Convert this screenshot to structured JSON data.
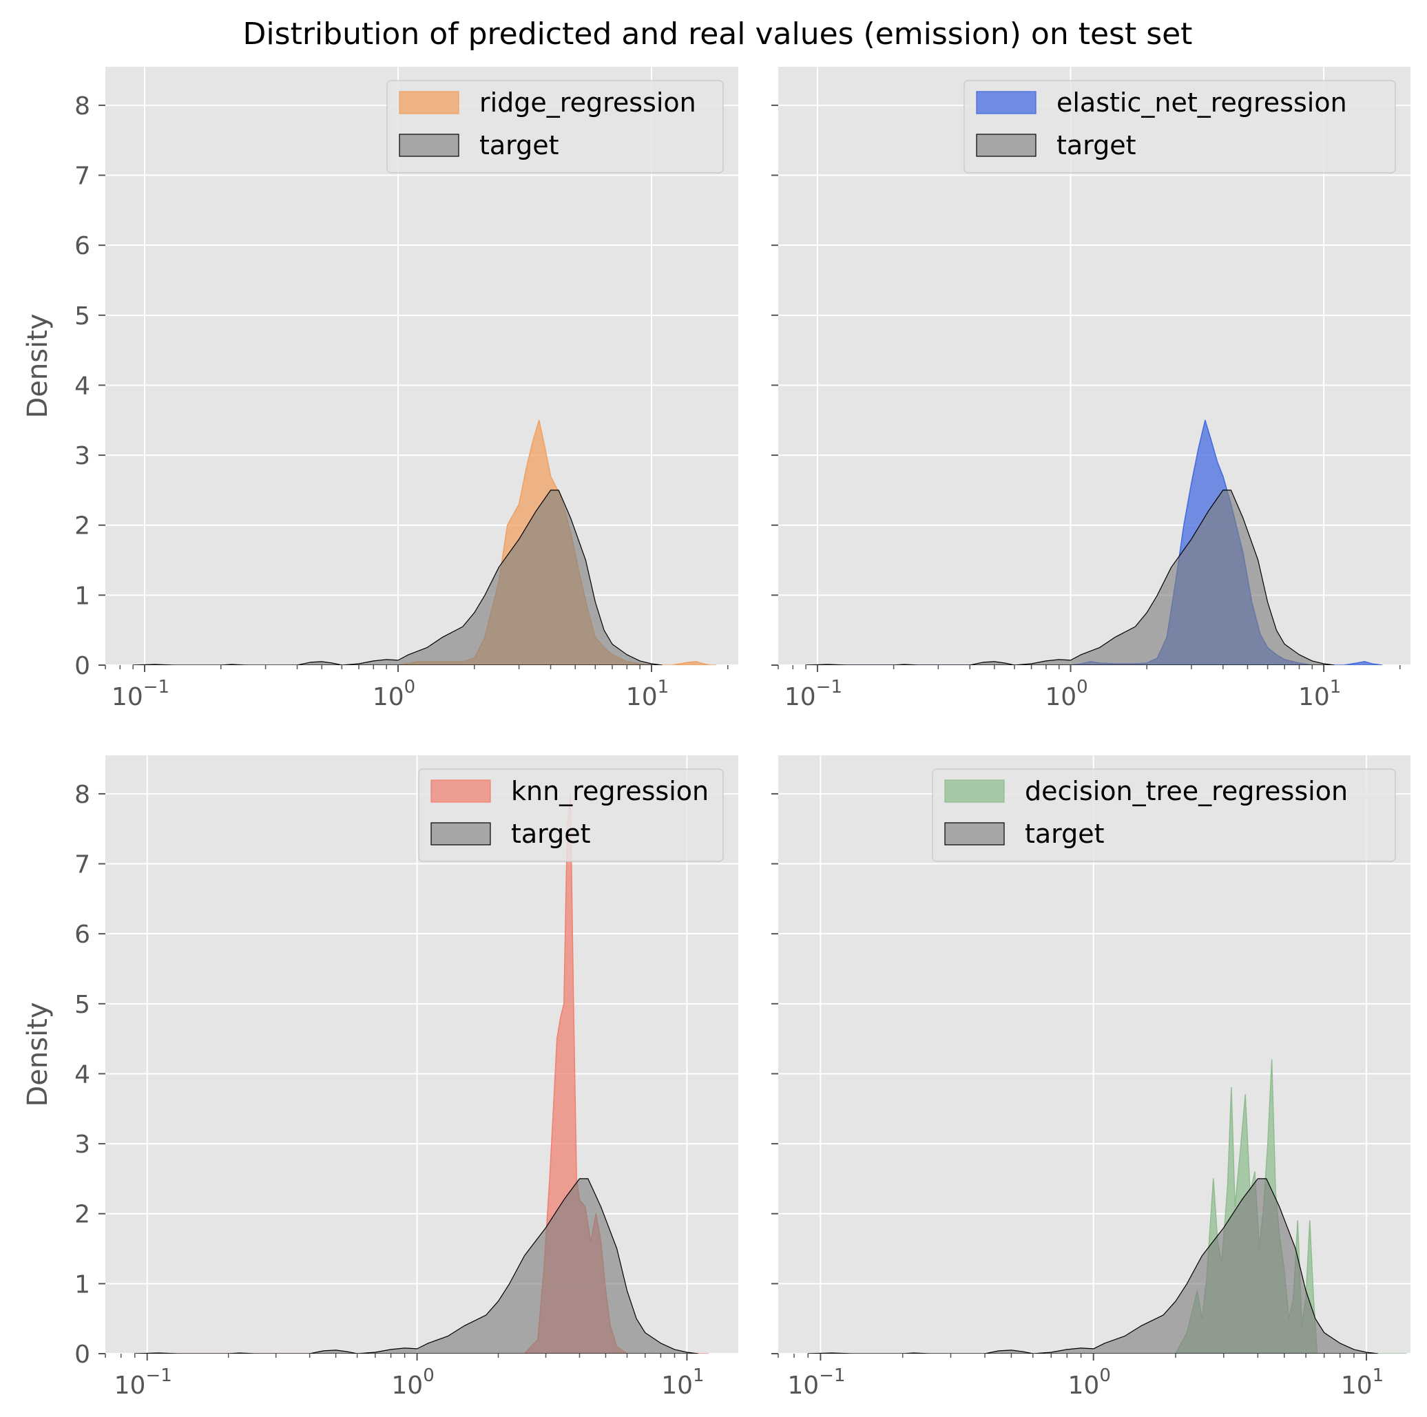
{
  "suptitle": "Distribution of predicted and real values (emission) on test set",
  "colors": {
    "panel_bg": "#E5E5E5",
    "grid": "#FFFFFF",
    "tick_text": "#555555",
    "target_fill": "#808080",
    "target_line": "#000000"
  },
  "chart_data": [
    {
      "type": "area",
      "xscale": "log",
      "xlim": [
        0.07,
        22
      ],
      "ylim": [
        0,
        8.55
      ],
      "ylabel": "Density",
      "xtick_labels": [
        "10",
        "10",
        "10"
      ],
      "xtick_exponents": [
        "−1",
        "0",
        "1"
      ],
      "xtick_values": [
        0.1,
        1,
        10
      ],
      "ytick_labels": [
        "0",
        "1",
        "2",
        "3",
        "4",
        "5",
        "6",
        "7",
        "8"
      ],
      "legend": {
        "position": "top-right",
        "entries": [
          "ridge_regression",
          "target"
        ]
      },
      "series": [
        {
          "name": "ridge_regression",
          "color": "#F0A060",
          "x": [
            0.09,
            0.5,
            1.0,
            1.2,
            1.5,
            1.8,
            2.0,
            2.2,
            2.5,
            2.7,
            3.0,
            3.2,
            3.4,
            3.6,
            3.8,
            4.0,
            4.4,
            4.8,
            5.2,
            5.6,
            6.0,
            6.5,
            7.0,
            8.0,
            9.0,
            10.0,
            11.0,
            12.0,
            13.0,
            14.0,
            15.0,
            16.0,
            17.0,
            18.0
          ],
          "y": [
            0,
            0,
            0,
            0.05,
            0.05,
            0.05,
            0.1,
            0.4,
            1.2,
            2.0,
            2.3,
            2.8,
            3.2,
            3.5,
            3.1,
            2.7,
            2.4,
            1.9,
            1.3,
            0.8,
            0.4,
            0.25,
            0.15,
            0.05,
            0.02,
            0,
            0,
            0,
            0.02,
            0.04,
            0.05,
            0.02,
            0,
            0
          ]
        },
        {
          "name": "target",
          "color": "#808080",
          "x": [
            0.09,
            0.11,
            0.13,
            0.2,
            0.22,
            0.25,
            0.4,
            0.45,
            0.5,
            0.55,
            0.6,
            0.7,
            0.8,
            0.9,
            1.0,
            1.1,
            1.3,
            1.5,
            1.8,
            2.0,
            2.2,
            2.5,
            3.0,
            3.5,
            4.0,
            4.3,
            4.8,
            5.5,
            6.0,
            6.5,
            7.0,
            8.0,
            9.0,
            10.0,
            11.0
          ],
          "y": [
            0,
            0.01,
            0,
            0,
            0.01,
            0,
            0,
            0.04,
            0.05,
            0.03,
            0,
            0.02,
            0.06,
            0.08,
            0.07,
            0.15,
            0.25,
            0.4,
            0.55,
            0.75,
            1.0,
            1.4,
            1.8,
            2.2,
            2.5,
            2.5,
            2.1,
            1.5,
            0.9,
            0.5,
            0.3,
            0.15,
            0.06,
            0.02,
            0
          ]
        }
      ]
    },
    {
      "type": "area",
      "xscale": "log",
      "xlim": [
        0.07,
        22
      ],
      "ylim": [
        0,
        8.55
      ],
      "ylabel": "",
      "xtick_labels": [
        "10",
        "10",
        "10"
      ],
      "xtick_exponents": [
        "−1",
        "0",
        "1"
      ],
      "xtick_values": [
        0.1,
        1,
        10
      ],
      "ytick_labels": [],
      "legend": {
        "position": "top-right",
        "entries": [
          "elastic_net_regression",
          "target"
        ]
      },
      "series": [
        {
          "name": "elastic_net_regression",
          "color": "#4169E1",
          "x": [
            0.09,
            1.0,
            1.1,
            1.2,
            1.3,
            1.5,
            1.8,
            2.0,
            2.2,
            2.4,
            2.6,
            2.8,
            3.0,
            3.2,
            3.4,
            3.6,
            3.8,
            4.0,
            4.3,
            4.8,
            5.2,
            5.6,
            6.0,
            6.5,
            7.0,
            8.0,
            9.0,
            10.0,
            12.0,
            13.5,
            14.5,
            15.5,
            17.0
          ],
          "y": [
            0,
            0,
            0.02,
            0.05,
            0.03,
            0.02,
            0.02,
            0.03,
            0.1,
            0.4,
            1.2,
            2.0,
            2.6,
            3.1,
            3.5,
            3.2,
            2.9,
            2.7,
            2.3,
            1.6,
            0.9,
            0.45,
            0.25,
            0.15,
            0.08,
            0.03,
            0,
            0,
            0,
            0.03,
            0.05,
            0.02,
            0
          ]
        },
        {
          "name": "target",
          "color": "#808080",
          "x": [
            0.09,
            0.11,
            0.13,
            0.2,
            0.22,
            0.25,
            0.4,
            0.45,
            0.5,
            0.55,
            0.6,
            0.7,
            0.8,
            0.9,
            1.0,
            1.1,
            1.3,
            1.5,
            1.8,
            2.0,
            2.2,
            2.5,
            3.0,
            3.5,
            4.0,
            4.3,
            4.8,
            5.5,
            6.0,
            6.5,
            7.0,
            8.0,
            9.0,
            10.0,
            11.0
          ],
          "y": [
            0,
            0.01,
            0,
            0,
            0.01,
            0,
            0,
            0.04,
            0.05,
            0.03,
            0,
            0.02,
            0.06,
            0.08,
            0.07,
            0.15,
            0.25,
            0.4,
            0.55,
            0.75,
            1.0,
            1.4,
            1.8,
            2.2,
            2.5,
            2.5,
            2.1,
            1.5,
            0.9,
            0.5,
            0.3,
            0.15,
            0.06,
            0.02,
            0
          ]
        }
      ]
    },
    {
      "type": "area",
      "xscale": "log",
      "xlim": [
        0.07,
        15.5
      ],
      "ylim": [
        0,
        8.55
      ],
      "ylabel": "Density",
      "xtick_labels": [
        "10",
        "10",
        "10"
      ],
      "xtick_exponents": [
        "−1",
        "0",
        "1"
      ],
      "xtick_values": [
        0.1,
        1,
        10
      ],
      "ytick_labels": [
        "0",
        "1",
        "2",
        "3",
        "4",
        "5",
        "6",
        "7",
        "8"
      ],
      "legend": {
        "position": "top-right",
        "entries": [
          "knn_regression",
          "target"
        ]
      },
      "series": [
        {
          "name": "knn_regression",
          "color": "#F08070",
          "x": [
            0.09,
            2.5,
            2.8,
            2.95,
            3.1,
            3.2,
            3.3,
            3.4,
            3.5,
            3.6,
            3.7,
            3.8,
            3.9,
            4.0,
            4.2,
            4.4,
            4.6,
            4.8,
            5.0,
            5.2,
            5.5,
            6.0,
            12.0
          ],
          "y": [
            0,
            0,
            0.2,
            1.2,
            2.5,
            3.5,
            4.5,
            4.8,
            5.0,
            7.5,
            8.0,
            5.0,
            2.5,
            2.2,
            2.1,
            1.6,
            2.0,
            1.6,
            0.9,
            0.4,
            0.1,
            0,
            0
          ]
        },
        {
          "name": "target",
          "color": "#808080",
          "x": [
            0.09,
            0.11,
            0.13,
            0.2,
            0.22,
            0.25,
            0.4,
            0.45,
            0.5,
            0.55,
            0.6,
            0.7,
            0.8,
            0.9,
            1.0,
            1.1,
            1.3,
            1.5,
            1.8,
            2.0,
            2.2,
            2.5,
            3.0,
            3.5,
            4.0,
            4.3,
            4.8,
            5.5,
            6.0,
            6.5,
            7.0,
            8.0,
            9.0,
            10.0,
            11.0
          ],
          "y": [
            0,
            0.01,
            0,
            0,
            0.01,
            0,
            0,
            0.04,
            0.05,
            0.03,
            0,
            0.02,
            0.06,
            0.08,
            0.07,
            0.15,
            0.25,
            0.4,
            0.55,
            0.75,
            1.0,
            1.4,
            1.8,
            2.2,
            2.5,
            2.5,
            2.1,
            1.5,
            0.9,
            0.5,
            0.3,
            0.15,
            0.06,
            0.02,
            0
          ]
        }
      ]
    },
    {
      "type": "area",
      "xscale": "log",
      "xlim": [
        0.07,
        14.5
      ],
      "ylim": [
        0,
        8.55
      ],
      "ylabel": "",
      "xtick_labels": [
        "10",
        "10",
        "10"
      ],
      "xtick_exponents": [
        "−1",
        "0",
        "1"
      ],
      "xtick_values": [
        0.1,
        1,
        10
      ],
      "ytick_labels": [],
      "legend": {
        "position": "top-right",
        "entries": [
          "decision_tree_regression",
          "target"
        ]
      },
      "series": [
        {
          "name": "decision_tree_regression",
          "color": "#8FBC8F",
          "x": [
            0.09,
            2.0,
            2.2,
            2.4,
            2.5,
            2.6,
            2.75,
            2.85,
            2.95,
            3.1,
            3.2,
            3.3,
            3.45,
            3.6,
            3.75,
            3.9,
            4.05,
            4.2,
            4.35,
            4.5,
            4.65,
            4.8,
            5.0,
            5.2,
            5.4,
            5.6,
            5.8,
            6.0,
            6.2,
            6.4,
            6.6,
            14.0
          ],
          "y": [
            0,
            0,
            0.3,
            0.9,
            0.5,
            1.1,
            2.5,
            1.6,
            1.3,
            2.4,
            3.8,
            2.1,
            2.9,
            3.7,
            2.3,
            2.6,
            1.5,
            2.1,
            3.0,
            4.2,
            2.3,
            1.7,
            1.2,
            0.5,
            0.8,
            1.9,
            0.4,
            0.8,
            1.9,
            0.8,
            0,
            0
          ]
        },
        {
          "name": "target",
          "color": "#808080",
          "x": [
            0.09,
            0.11,
            0.13,
            0.2,
            0.22,
            0.25,
            0.4,
            0.45,
            0.5,
            0.55,
            0.6,
            0.7,
            0.8,
            0.9,
            1.0,
            1.1,
            1.3,
            1.5,
            1.8,
            2.0,
            2.2,
            2.5,
            3.0,
            3.5,
            4.0,
            4.3,
            4.8,
            5.5,
            6.0,
            6.5,
            7.0,
            8.0,
            9.0,
            10.0,
            11.0
          ],
          "y": [
            0,
            0.01,
            0,
            0,
            0.01,
            0,
            0,
            0.04,
            0.05,
            0.03,
            0,
            0.02,
            0.06,
            0.08,
            0.07,
            0.15,
            0.25,
            0.4,
            0.55,
            0.75,
            1.0,
            1.4,
            1.8,
            2.2,
            2.5,
            2.5,
            2.1,
            1.5,
            0.9,
            0.5,
            0.3,
            0.15,
            0.06,
            0.02,
            0
          ]
        }
      ]
    }
  ]
}
